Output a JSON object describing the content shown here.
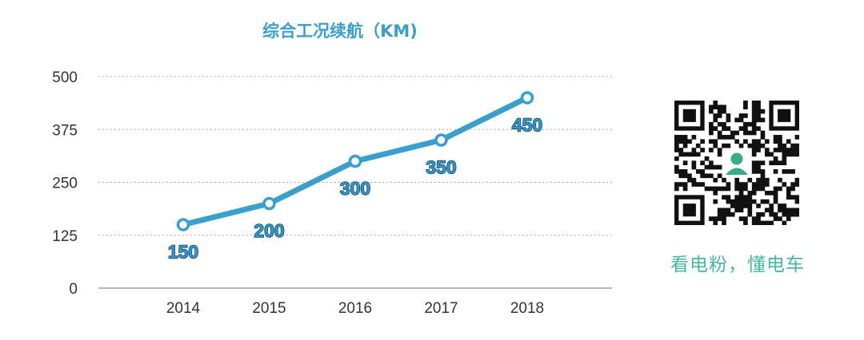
{
  "chart_data": {
    "type": "line",
    "title": "综合工况续航（KM)",
    "categories": [
      "2014",
      "2015",
      "2016",
      "2017",
      "2018"
    ],
    "series": [
      {
        "values": [
          150,
          200,
          300,
          350,
          450
        ],
        "data_labels": [
          "150",
          "200",
          "300",
          "350",
          "450"
        ]
      }
    ],
    "yticks": [
      "0",
      "125",
      "250",
      "375",
      "500"
    ],
    "ylim": [
      0,
      500
    ],
    "grid": true,
    "line_color": "#3a9fcb",
    "marker": "open-circle"
  },
  "qr_code": {
    "icon": "qr-code-icon",
    "center_logo": "person-avatar-icon",
    "logo_color": "#3aaa8c"
  },
  "slogan": "看电粉，懂电车",
  "colors": {
    "title": "#3a9fcb",
    "slogan": "#45b6a4"
  }
}
